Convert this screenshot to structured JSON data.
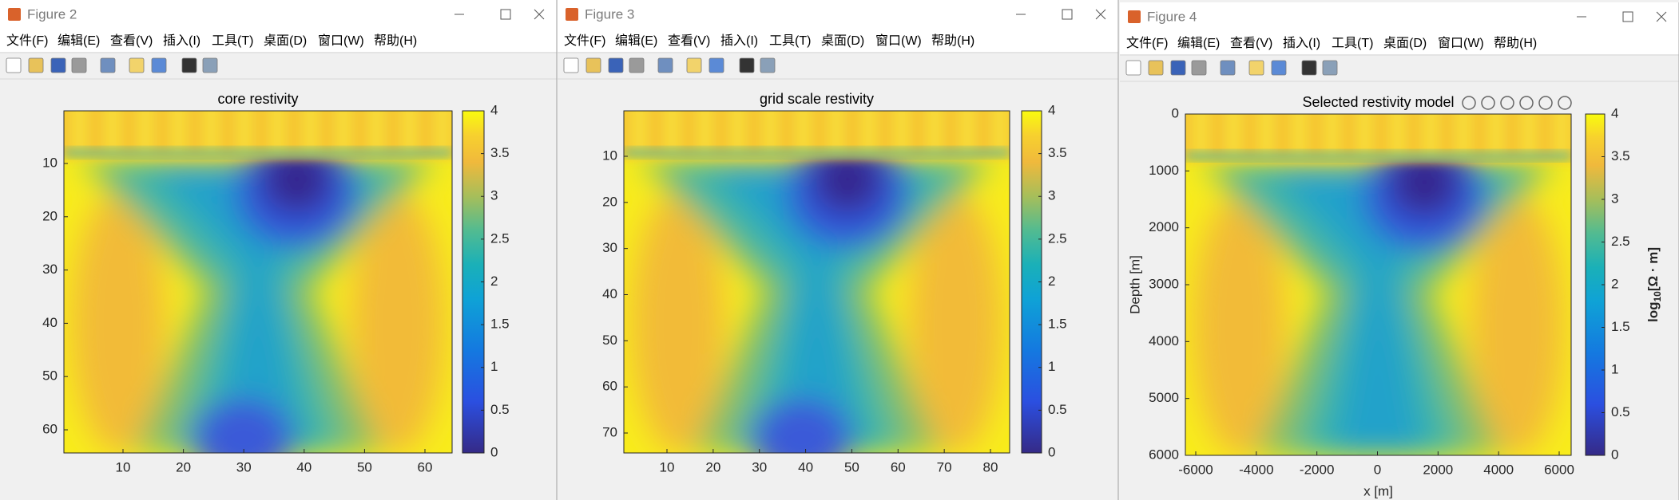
{
  "menu": [
    "文件(F)",
    "编辑(E)",
    "查看(V)",
    "插入(I)",
    "工具(T)",
    "桌面(D)",
    "窗口(W)",
    "帮助(H)"
  ],
  "windows": [
    {
      "title": "Figure 2",
      "axes": {
        "title": "core restivity",
        "xticks": [
          10,
          20,
          30,
          40,
          50,
          60
        ],
        "yticks": [
          10,
          20,
          30,
          40,
          50,
          60
        ],
        "colorbar_ticks": [
          0,
          0.5,
          1,
          1.5,
          2,
          2.5,
          3,
          3.5,
          4
        ]
      }
    },
    {
      "title": "Figure 3",
      "axes": {
        "title": "grid scale restivity",
        "xticks": [
          10,
          20,
          30,
          40,
          50,
          60,
          70,
          80
        ],
        "yticks": [
          10,
          20,
          30,
          40,
          50,
          60,
          70
        ],
        "colorbar_ticks": [
          0,
          0.5,
          1,
          1.5,
          2,
          2.5,
          3,
          3.5,
          4
        ]
      }
    },
    {
      "title": "Figure 4",
      "axes": {
        "title": "Selected restivity model",
        "xticks": [
          -6000,
          -4000,
          -2000,
          0,
          2000,
          4000,
          6000
        ],
        "yticks": [
          0,
          1000,
          2000,
          3000,
          4000,
          5000,
          6000
        ],
        "colorbar_ticks": [
          0,
          0.5,
          1,
          1.5,
          2,
          2.5,
          3,
          3.5,
          4
        ],
        "xlabel": "x [m]",
        "ylabel": "Depth [m]",
        "colorbar_label": {
          "base": "log",
          "subscript": "10",
          "unit": "[Ω · m]"
        }
      }
    }
  ]
}
